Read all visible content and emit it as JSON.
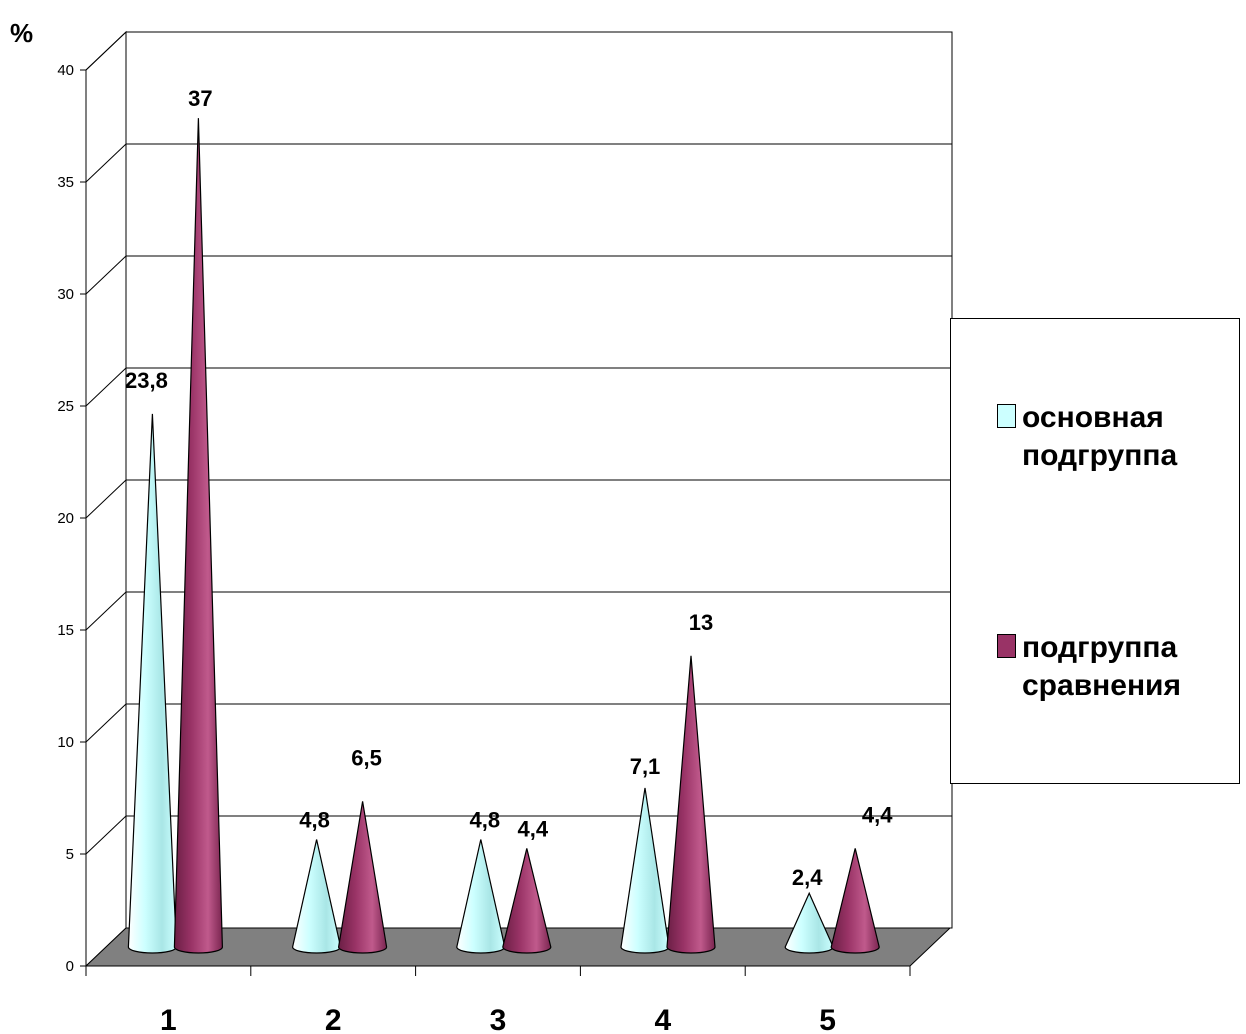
{
  "chart_data": {
    "type": "bar",
    "bar_shape": "cone",
    "unit_label": "%",
    "categories": [
      "1",
      "2",
      "3",
      "4",
      "5"
    ],
    "series": [
      {
        "name": "основная подгруппа",
        "color": "#ccffff",
        "values": [
          23.8,
          4.8,
          4.8,
          7.1,
          2.4
        ],
        "labels": [
          "23,8",
          "4,8",
          "4,8",
          "7,1",
          "2,4"
        ]
      },
      {
        "name": "подгруппа сравнения",
        "color": "#993366",
        "values": [
          37,
          6.5,
          4.4,
          13,
          4.4
        ],
        "labels": [
          "37",
          "6,5",
          "4,4",
          "13",
          "4,4"
        ]
      }
    ],
    "yticks": [
      "0",
      "5",
      "10",
      "15",
      "20",
      "25",
      "30",
      "35",
      "40"
    ],
    "ylim": [
      0,
      40
    ],
    "grid": true,
    "legend_position": "right",
    "floor_color": "#808080"
  }
}
